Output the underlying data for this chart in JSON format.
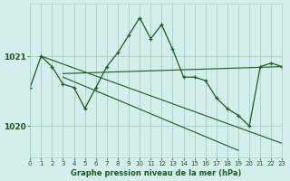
{
  "bg_color": "#d4eeed",
  "grid_color": "#a8cfc0",
  "line_color": "#1a5c1a",
  "marker_color": "#1a5c1a",
  "title": "Graphe pression niveau de la mer (hPa)",
  "title_color": "#1a5c1a",
  "xlim": [
    0,
    23
  ],
  "ylim": [
    1019.55,
    1021.75
  ],
  "yticks": [
    1020,
    1021
  ],
  "xticks": [
    0,
    1,
    2,
    3,
    4,
    5,
    6,
    7,
    8,
    9,
    10,
    11,
    12,
    13,
    14,
    15,
    16,
    17,
    18,
    19,
    20,
    21,
    22,
    23
  ],
  "series": [
    {
      "x": [
        0,
        1,
        2,
        3,
        4,
        5,
        6,
        7,
        8,
        9,
        10,
        11,
        12,
        13,
        14,
        15,
        16,
        17,
        18,
        19,
        20,
        21,
        22,
        23
      ],
      "y": [
        1020.55,
        1021.0,
        1020.85,
        1020.6,
        1020.55,
        1020.25,
        1020.55,
        1020.85,
        1021.05,
        1021.3,
        1021.55,
        1021.25,
        1021.45,
        1021.1,
        1020.7,
        1020.7,
        1020.65,
        1020.4,
        1020.25,
        1020.15,
        1020.0,
        1020.85,
        1020.9,
        1020.85
      ],
      "marker": true
    },
    {
      "x": [
        1,
        23
      ],
      "y": [
        1021.0,
        1019.75
      ],
      "marker": false
    },
    {
      "x": [
        3,
        19
      ],
      "y": [
        1020.7,
        1019.65
      ],
      "marker": false
    },
    {
      "x": [
        3,
        23
      ],
      "y": [
        1020.75,
        1020.85
      ],
      "marker": false
    }
  ]
}
